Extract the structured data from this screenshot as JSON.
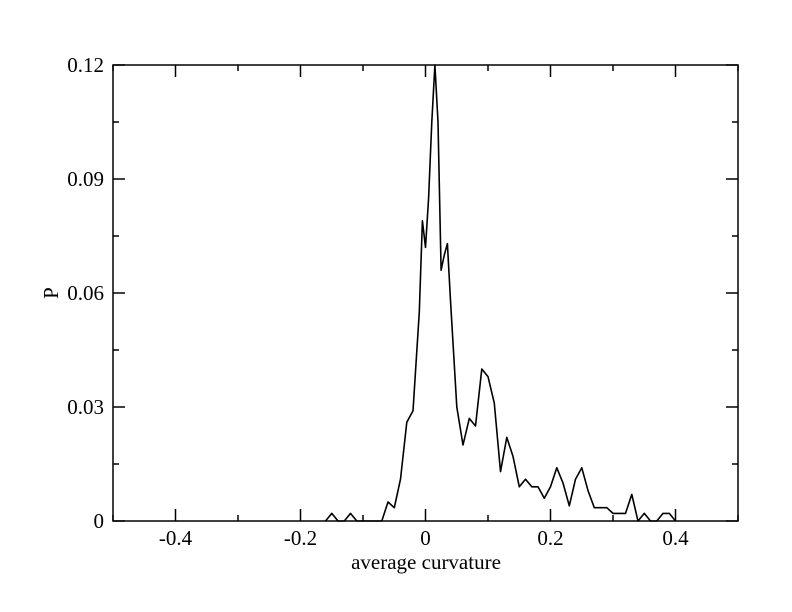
{
  "chart_data": {
    "type": "line",
    "title": "",
    "xlabel": "average curvature",
    "ylabel": "P",
    "xlim": [
      -0.5,
      0.5
    ],
    "ylim": [
      0,
      0.12
    ],
    "x_ticks": [
      {
        "value": -0.4,
        "label": "-0.4"
      },
      {
        "value": -0.2,
        "label": "-0.2"
      },
      {
        "value": 0,
        "label": "0"
      },
      {
        "value": 0.2,
        "label": "0.2"
      },
      {
        "value": 0.4,
        "label": "0.4"
      }
    ],
    "y_ticks": [
      {
        "value": 0,
        "label": "0"
      },
      {
        "value": 0.03,
        "label": "0.03"
      },
      {
        "value": 0.06,
        "label": "0.06"
      },
      {
        "value": 0.09,
        "label": "0.09"
      },
      {
        "value": 0.12,
        "label": "0.12"
      }
    ],
    "grid": false,
    "legend": "none",
    "line_color": "#000000",
    "series": [
      {
        "x": [
          -0.16,
          -0.15,
          -0.14,
          -0.13,
          -0.12,
          -0.11,
          -0.07,
          -0.06,
          -0.05,
          -0.04,
          -0.03,
          -0.02,
          -0.01,
          -0.005,
          0.0,
          0.005,
          0.01,
          0.015,
          0.02,
          0.025,
          0.03,
          0.035,
          0.04,
          0.05,
          0.06,
          0.07,
          0.08,
          0.09,
          0.1,
          0.11,
          0.12,
          0.13,
          0.14,
          0.15,
          0.16,
          0.17,
          0.18,
          0.19,
          0.2,
          0.21,
          0.22,
          0.23,
          0.24,
          0.25,
          0.26,
          0.27,
          0.28,
          0.29,
          0.3,
          0.31,
          0.32,
          0.33,
          0.34,
          0.35,
          0.36,
          0.37,
          0.38,
          0.39,
          0.4
        ],
        "y": [
          0.0,
          0.002,
          0.0,
          0.0,
          0.002,
          0.0,
          0.0,
          0.005,
          0.0035,
          0.011,
          0.026,
          0.029,
          0.055,
          0.079,
          0.072,
          0.085,
          0.105,
          0.12,
          0.105,
          0.066,
          0.07,
          0.073,
          0.058,
          0.03,
          0.02,
          0.027,
          0.025,
          0.04,
          0.038,
          0.031,
          0.013,
          0.022,
          0.017,
          0.009,
          0.011,
          0.009,
          0.009,
          0.006,
          0.009,
          0.014,
          0.01,
          0.004,
          0.011,
          0.014,
          0.008,
          0.0035,
          0.0035,
          0.0035,
          0.002,
          0.002,
          0.002,
          0.007,
          0.0,
          0.002,
          0.0,
          0.0,
          0.002,
          0.002,
          0.0
        ]
      }
    ]
  }
}
